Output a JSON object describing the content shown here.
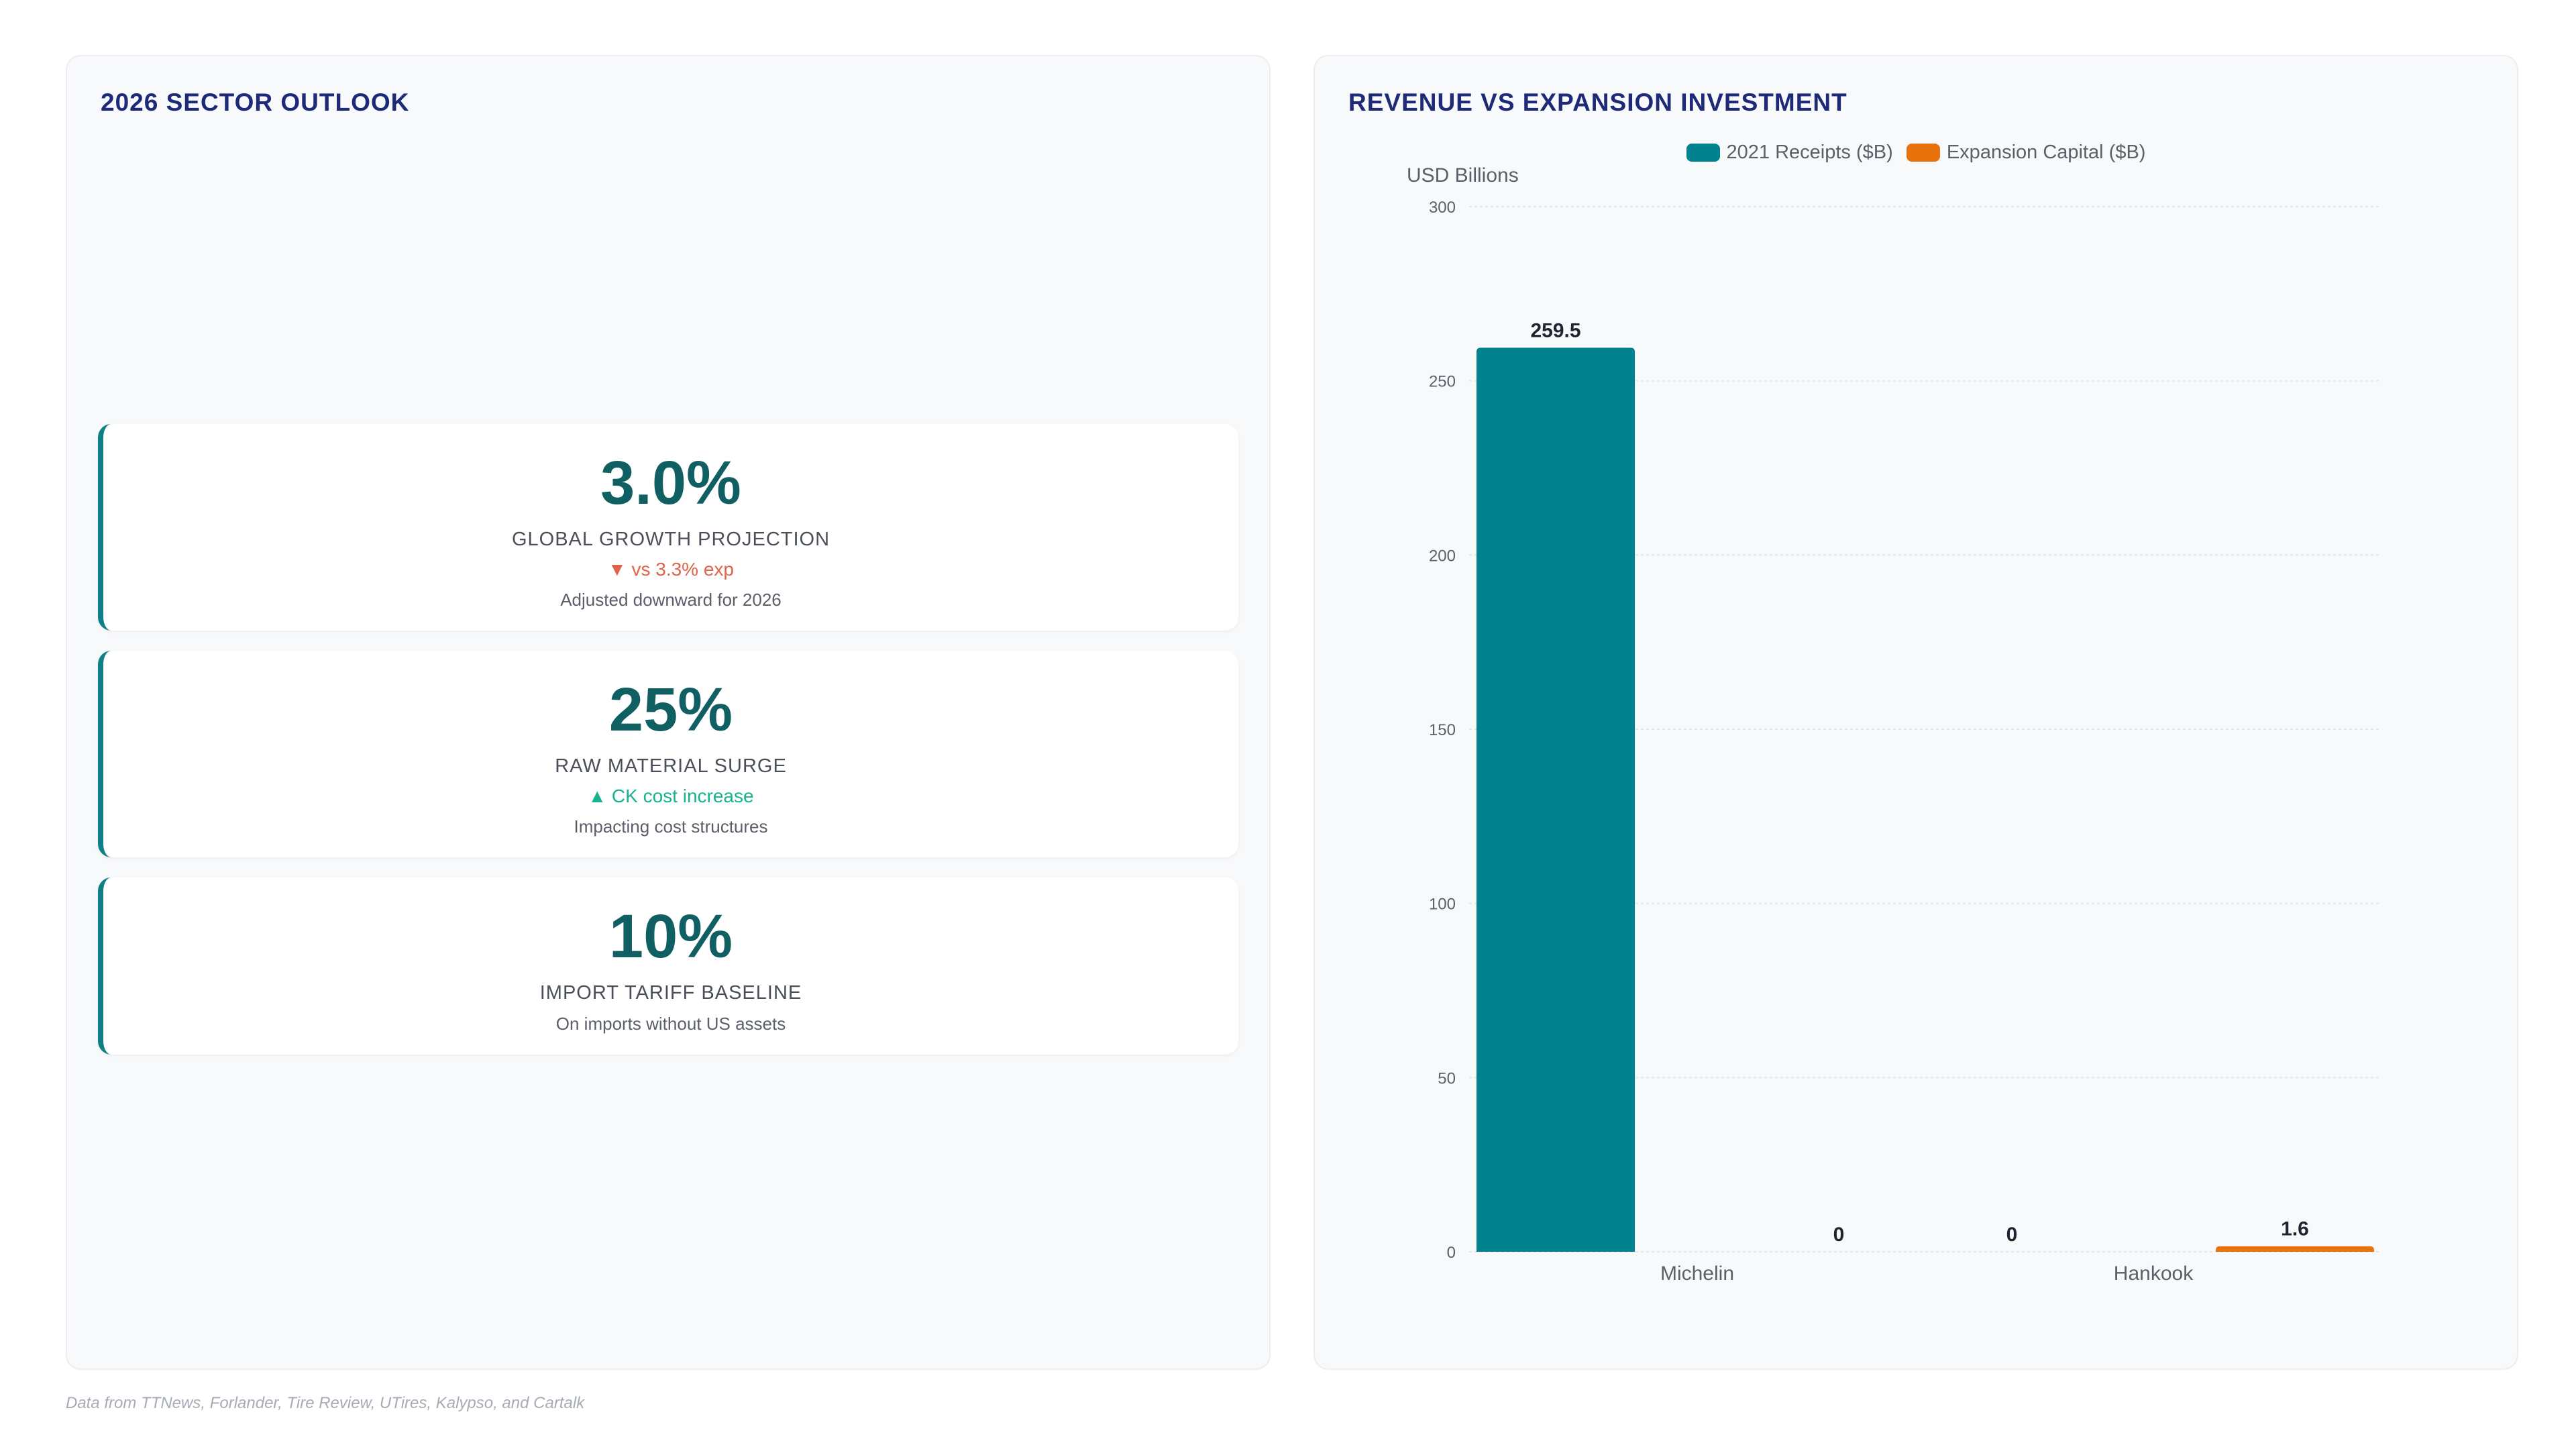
{
  "left_panel": {
    "title": "2026 SECTOR OUTLOOK",
    "kpis": [
      {
        "value": "3.0%",
        "label": "GLOBAL GROWTH PROJECTION",
        "delta": "▼ vs 3.3% exp",
        "delta_direction": "down",
        "note": "Adjusted downward for 2026"
      },
      {
        "value": "25%",
        "label": "RAW MATERIAL SURGE",
        "delta": "▲ CK cost increase",
        "delta_direction": "up",
        "note": "Impacting cost structures"
      },
      {
        "value": "10%",
        "label": "IMPORT TARIFF BASELINE",
        "delta": "",
        "delta_direction": "",
        "note": "On imports without US assets"
      }
    ]
  },
  "right_panel": {
    "title": "REVENUE VS EXPANSION INVESTMENT"
  },
  "chart_data": {
    "type": "bar",
    "title": "REVENUE VS EXPANSION INVESTMENT",
    "ylabel": "USD Billions",
    "xlabel": "",
    "categories": [
      "Michelin",
      "Hankook"
    ],
    "series": [
      {
        "name": "2021 Receipts ($B)",
        "values": [
          259.5,
          0
        ],
        "color": "#00838f"
      },
      {
        "name": "Expansion Capital ($B)",
        "values": [
          0,
          1.6
        ],
        "color": "#e8720c"
      }
    ],
    "ylim": [
      0,
      300
    ],
    "yticks": [
      0,
      50,
      100,
      150,
      200,
      250,
      300
    ],
    "grid": true,
    "legend_position": "top-center",
    "data_labels": true
  },
  "footer": {
    "source": "Data from TTNews, Forlander, Tire Review, UTires, Kalypso, and Cartalk"
  },
  "colors": {
    "accent": "#0e7f85",
    "kpi_value": "#0f5f63",
    "title": "#1e2a78",
    "negative": "#e0634a",
    "positive": "#17b38e"
  }
}
